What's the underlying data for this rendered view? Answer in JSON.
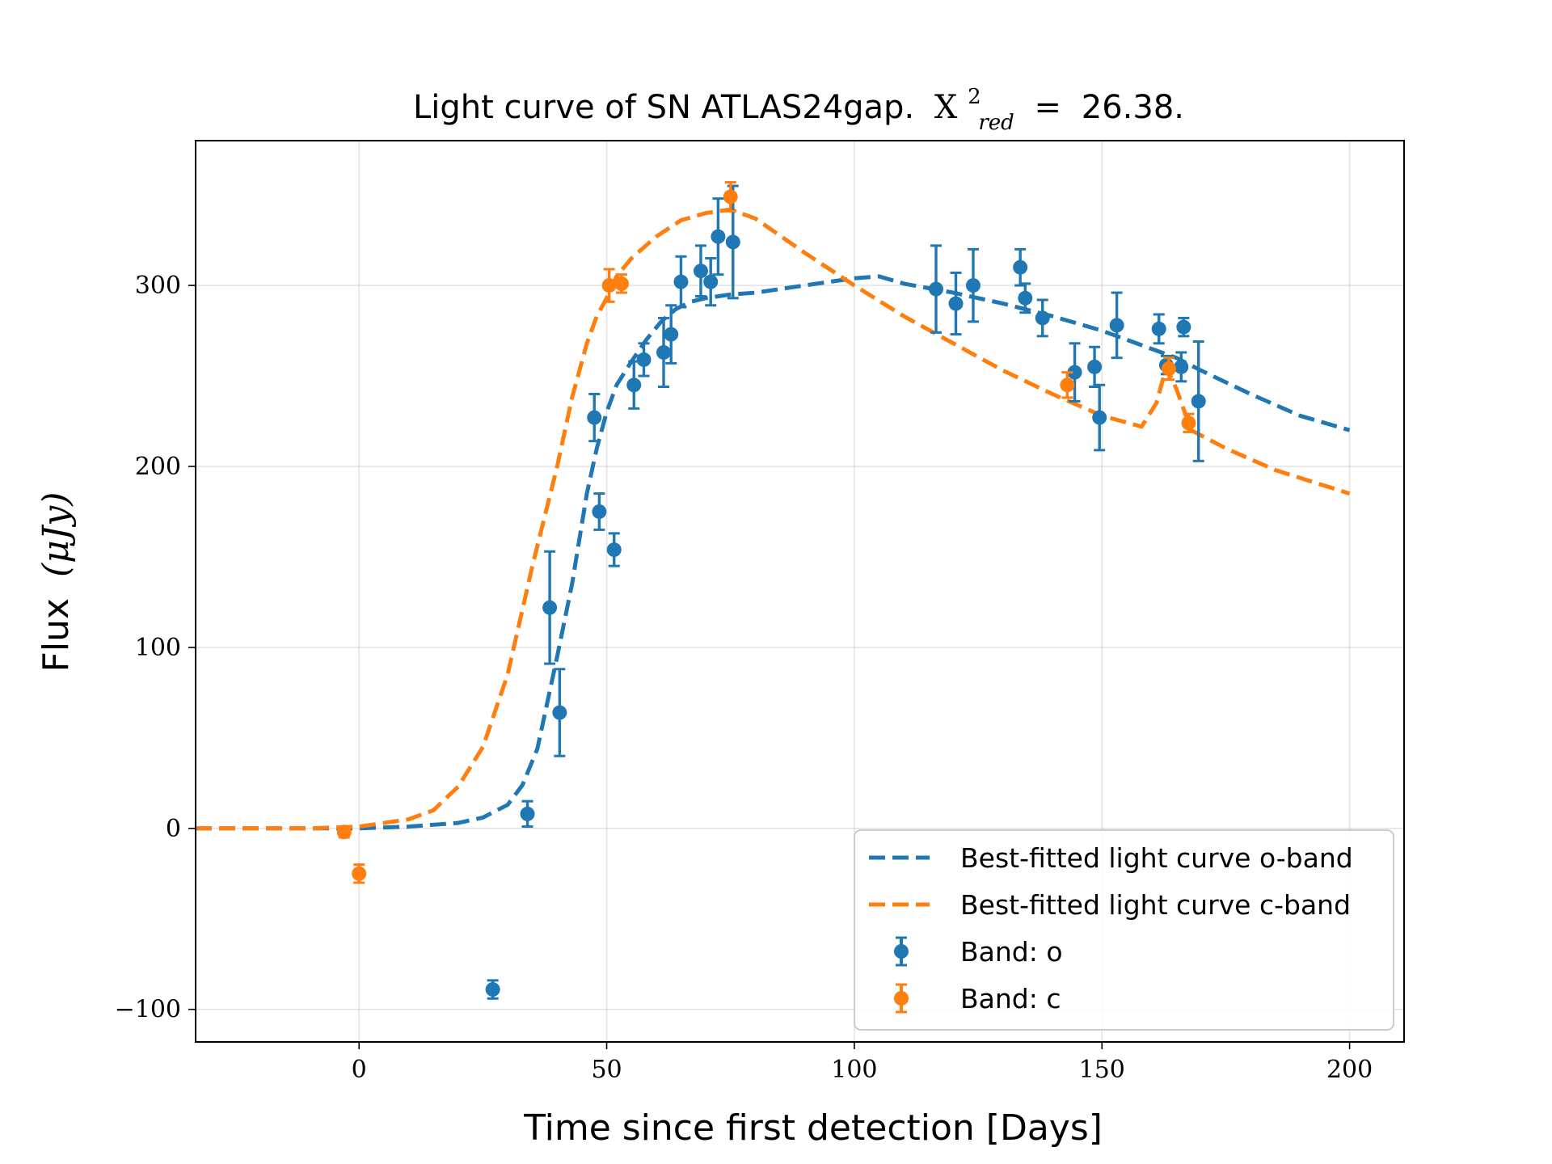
{
  "chart_data": {
    "type": "scatter",
    "title": {
      "prefix": "Light curve of SN ATLAS24gap.",
      "chi_symbol": "X",
      "chi_sup": "2",
      "chi_sub": "red",
      "equals": "=",
      "value": "26.38."
    },
    "xlabel": "Time since first detection [Days]",
    "ylabel": {
      "text": "Flux",
      "unit": "(μJy)"
    },
    "xlim": [
      -33,
      211
    ],
    "ylim": [
      -118,
      380
    ],
    "xticks": [
      0,
      50,
      100,
      150,
      200
    ],
    "yticks": [
      -100,
      0,
      100,
      200,
      300
    ],
    "xtick_labels": [
      "0",
      "50",
      "100",
      "150",
      "200"
    ],
    "ytick_labels": [
      "−100",
      "0",
      "100",
      "200",
      "300"
    ],
    "grid": true,
    "legend_position": "lower right",
    "colors": {
      "o": "#1f77b4",
      "c": "#ff7f0e"
    },
    "fit_curves": [
      {
        "name": "Best-fitted light curve o-band",
        "band": "o",
        "x": [
          -33,
          -10,
          0,
          10,
          20,
          25,
          30,
          33,
          36,
          40,
          43,
          46,
          48,
          50,
          52,
          55,
          58,
          61,
          64,
          67,
          70,
          75,
          80,
          90,
          100,
          105,
          110,
          120,
          130,
          140,
          150,
          160,
          165,
          170,
          180,
          190,
          200
        ],
        "y": [
          0,
          0,
          0,
          1,
          3,
          6,
          13,
          24,
          44,
          95,
          135,
          185,
          210,
          230,
          245,
          258,
          270,
          280,
          287,
          291,
          293,
          295,
          296,
          300,
          304,
          305,
          301,
          296,
          290,
          283,
          275,
          265,
          260,
          253,
          240,
          228,
          220
        ]
      },
      {
        "name": "Best-fitted light curve c-band",
        "band": "c",
        "x": [
          -33,
          -10,
          0,
          10,
          15,
          20,
          25,
          30,
          35,
          40,
          43,
          46,
          48,
          50,
          52,
          55,
          60,
          65,
          70,
          75,
          80,
          90,
          100,
          110,
          120,
          130,
          140,
          150,
          158,
          161,
          163,
          165,
          168,
          175,
          185,
          200
        ],
        "y": [
          0,
          0,
          1,
          5,
          10,
          23,
          45,
          85,
          145,
          200,
          238,
          268,
          283,
          293,
          305,
          315,
          327,
          336,
          340,
          342,
          337,
          318,
          300,
          283,
          268,
          253,
          240,
          228,
          222,
          235,
          255,
          243,
          220,
          210,
          198,
          185
        ]
      }
    ],
    "series": [
      {
        "name": "Band: o",
        "band": "o",
        "points": [
          {
            "x": 27,
            "y": -89,
            "err": 5
          },
          {
            "x": 34,
            "y": 8,
            "err": 7
          },
          {
            "x": 38.5,
            "y": 122,
            "err": 31
          },
          {
            "x": 40.5,
            "y": 64,
            "err": 24
          },
          {
            "x": 47.5,
            "y": 227,
            "err": 13
          },
          {
            "x": 48.5,
            "y": 175,
            "err": 10
          },
          {
            "x": 51.5,
            "y": 154,
            "err": 9
          },
          {
            "x": 55.5,
            "y": 245,
            "err": 13
          },
          {
            "x": 57.5,
            "y": 259,
            "err": 9
          },
          {
            "x": 61.5,
            "y": 263,
            "err": 19
          },
          {
            "x": 63,
            "y": 273,
            "err": 16
          },
          {
            "x": 65,
            "y": 302,
            "err": 14
          },
          {
            "x": 69,
            "y": 308,
            "err": 14
          },
          {
            "x": 71,
            "y": 302,
            "err": 13
          },
          {
            "x": 72.5,
            "y": 327,
            "err": 21
          },
          {
            "x": 75.5,
            "y": 324,
            "err": 31
          },
          {
            "x": 116.5,
            "y": 298,
            "err": 24
          },
          {
            "x": 120.5,
            "y": 290,
            "err": 17
          },
          {
            "x": 124,
            "y": 300,
            "err": 20
          },
          {
            "x": 133.5,
            "y": 310,
            "err": 10
          },
          {
            "x": 134.5,
            "y": 293,
            "err": 8
          },
          {
            "x": 138,
            "y": 282,
            "err": 10
          },
          {
            "x": 144.5,
            "y": 252,
            "err": 16
          },
          {
            "x": 148.5,
            "y": 255,
            "err": 11
          },
          {
            "x": 149.5,
            "y": 227,
            "err": 18
          },
          {
            "x": 153,
            "y": 278,
            "err": 18
          },
          {
            "x": 161.5,
            "y": 276,
            "err": 8
          },
          {
            "x": 163,
            "y": 256,
            "err": 5
          },
          {
            "x": 166,
            "y": 255,
            "err": 8
          },
          {
            "x": 166.5,
            "y": 277,
            "err": 5
          },
          {
            "x": 169.5,
            "y": 236,
            "err": 33
          }
        ]
      },
      {
        "name": "Band: c",
        "band": "c",
        "points": [
          {
            "x": -3,
            "y": -2,
            "err": 3
          },
          {
            "x": 0,
            "y": -25,
            "err": 5
          },
          {
            "x": 50.5,
            "y": 300,
            "err": 9
          },
          {
            "x": 53,
            "y": 301,
            "err": 5
          },
          {
            "x": 75,
            "y": 349,
            "err": 8
          },
          {
            "x": 143,
            "y": 245,
            "err": 7
          },
          {
            "x": 163.5,
            "y": 254,
            "err": 6
          },
          {
            "x": 167.5,
            "y": 224,
            "err": 5
          }
        ]
      }
    ]
  }
}
